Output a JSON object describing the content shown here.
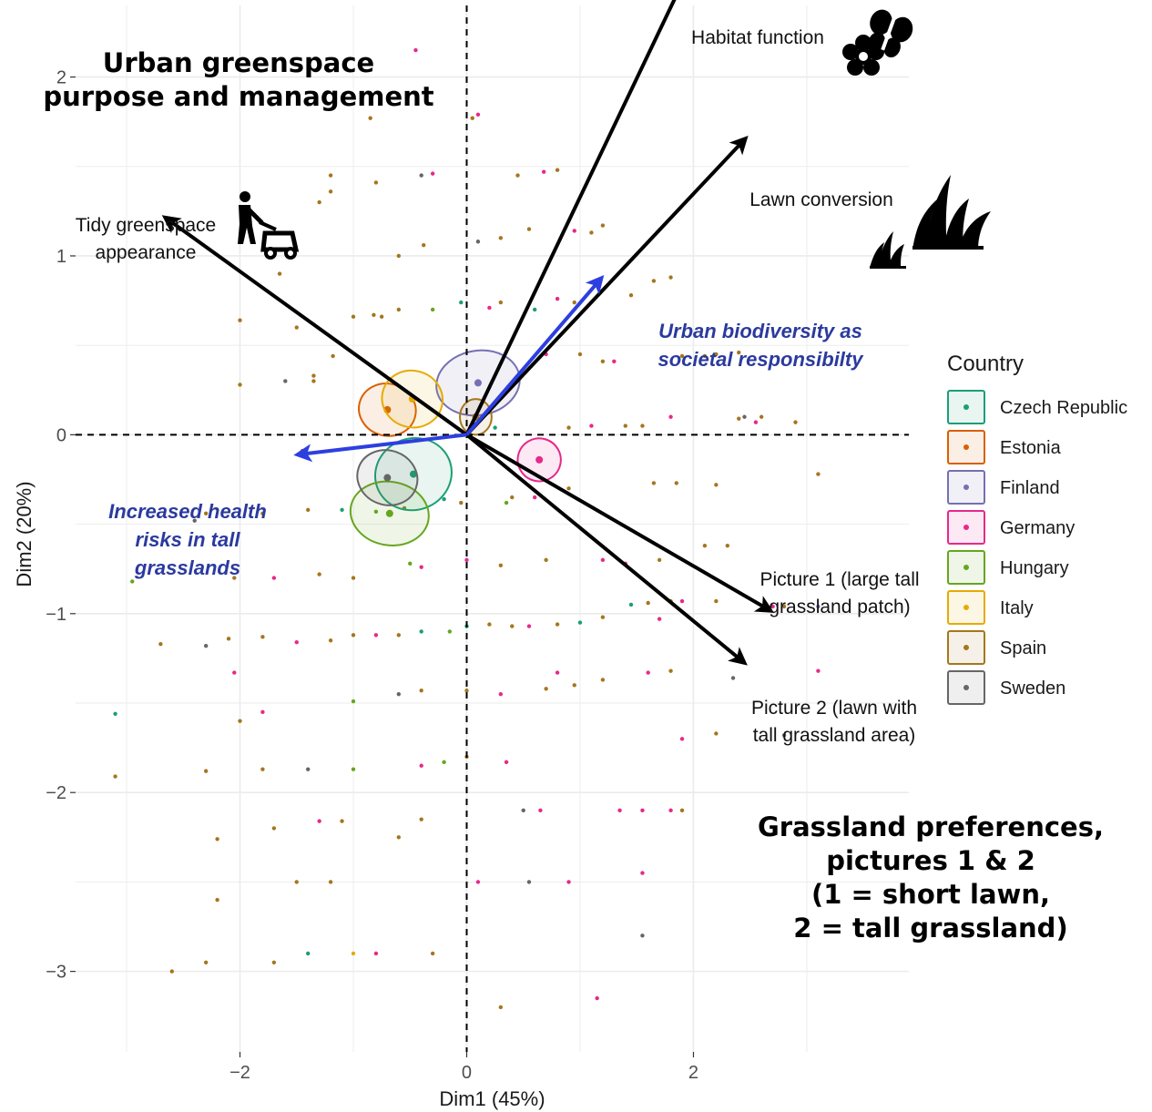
{
  "chart_data": {
    "type": "scatter",
    "subtype": "PCA biplot",
    "xlabel": "Dim1 (45%)",
    "ylabel": "Dim2 (20%)",
    "xlim": [
      -3.45,
      3.9
    ],
    "ylim": [
      -3.45,
      2.4
    ],
    "xticks": [
      -2,
      0,
      2
    ],
    "yticks": [
      -3,
      -2,
      -1,
      0,
      1,
      2
    ],
    "xtick_labels": [
      "−2",
      "0",
      "2"
    ],
    "ytick_labels": [
      "−3",
      "−2",
      "−1",
      "0",
      "1",
      "2"
    ],
    "grid": true,
    "reference_lines": {
      "x": 0,
      "y": 0,
      "style": "dashed"
    },
    "annotations": [
      {
        "id": "urban",
        "lines": [
          "Urban greenspace",
          "purpose and management"
        ]
      },
      {
        "id": "grass",
        "lines": [
          "Grassland preferences,",
          "pictures 1 & 2",
          "(1 = short lawn,",
          "2 = tall grassland)"
        ]
      }
    ],
    "variables": [
      {
        "name": "Habitat function",
        "lines": [
          "Habitat function"
        ],
        "x": 1.95,
        "y": 2.59,
        "color": "#000000",
        "icon": "flower-butterfly-icon"
      },
      {
        "name": "Lawn conversion",
        "lines": [
          "Lawn conversion"
        ],
        "x": 2.45,
        "y": 1.65,
        "color": "#000000",
        "icon": "tall-grass-icon"
      },
      {
        "name": "Tidy greenspace appearance",
        "lines": [
          "Tidy greenspace",
          "appearance"
        ],
        "x": -2.65,
        "y": 1.21,
        "color": "#000000",
        "icon": "lawn-mower-icon"
      },
      {
        "name": "Picture 1 (large tall grassland patch)",
        "lines": [
          "Picture 1 (large tall",
          "grassland patch)"
        ],
        "x": 2.67,
        "y": -0.98,
        "color": "#000000"
      },
      {
        "name": "Picture 2 (lawn with tall grassland area)",
        "lines": [
          "Picture 2 (lawn with",
          "tall grassland area)"
        ],
        "x": 2.44,
        "y": -1.27,
        "color": "#000000"
      }
    ],
    "supplementary": [
      {
        "name": "Urban biodiversity as societal responsibilty",
        "lines": [
          "Urban biodiversity as",
          "societal responsibilty"
        ],
        "x": 1.18,
        "y": 0.87,
        "color": "#2d3fe0"
      },
      {
        "name": "Increased health risks in tall grasslands",
        "lines": [
          "Increased health",
          "risks in tall",
          "grasslands"
        ],
        "x": -1.48,
        "y": -0.11,
        "color": "#2d3fe0"
      }
    ],
    "legend": {
      "title": "Country",
      "position": "right",
      "entries": [
        {
          "label": "Czech Republic",
          "color": "#1b9e77"
        },
        {
          "label": "Estonia",
          "color": "#d95f02"
        },
        {
          "label": "Finland",
          "color": "#7570b3"
        },
        {
          "label": "Germany",
          "color": "#e7298a"
        },
        {
          "label": "Hungary",
          "color": "#66a61e"
        },
        {
          "label": "Italy",
          "color": "#e6ab02"
        },
        {
          "label": "Spain",
          "color": "#a6761d"
        },
        {
          "label": "Sweden",
          "color": "#666666"
        }
      ]
    },
    "country_centroids": [
      {
        "country": "Czech Republic",
        "x": -0.47,
        "y": -0.22,
        "rx": 0.34,
        "ry": 0.2,
        "angle": -20
      },
      {
        "country": "Estonia",
        "x": -0.7,
        "y": 0.14,
        "rx": 0.23,
        "ry": 0.16,
        "angle": -75
      },
      {
        "country": "Finland",
        "x": 0.1,
        "y": 0.29,
        "rx": 0.37,
        "ry": 0.18,
        "angle": -10
      },
      {
        "country": "Germany",
        "x": 0.64,
        "y": -0.14,
        "rx": 0.19,
        "ry": 0.12,
        "angle": 15
      },
      {
        "country": "Hungary",
        "x": -0.68,
        "y": -0.44,
        "rx": 0.28,
        "ry": 0.22,
        "angle": -80
      },
      {
        "country": "Italy",
        "x": -0.48,
        "y": 0.2,
        "rx": 0.25,
        "ry": 0.17,
        "angle": -75
      },
      {
        "country": "Spain",
        "x": 0.08,
        "y": 0.1,
        "rx": 0.14,
        "ry": 0.1,
        "angle": 0
      },
      {
        "country": "Sweden",
        "x": -0.7,
        "y": -0.24,
        "rx": 0.24,
        "ry": 0.17,
        "angle": -70
      }
    ],
    "points": [
      [
        -1.2,
        1.36,
        "Spain"
      ],
      [
        -1.3,
        1.3,
        "Spain"
      ],
      [
        -1.65,
        0.9,
        "Spain"
      ],
      [
        -1.5,
        0.6,
        "Spain"
      ],
      [
        -1.18,
        0.44,
        "Spain"
      ],
      [
        -1.0,
        0.66,
        "Spain"
      ],
      [
        -0.82,
        0.67,
        "Spain"
      ],
      [
        -0.75,
        0.66,
        "Spain"
      ],
      [
        -0.6,
        0.7,
        "Spain"
      ],
      [
        -1.35,
        0.33,
        "Spain"
      ],
      [
        -2.0,
        0.64,
        "Spain"
      ],
      [
        -2.0,
        0.28,
        "Spain"
      ],
      [
        -1.6,
        0.3,
        "Sweden"
      ],
      [
        -1.35,
        0.3,
        "Spain"
      ],
      [
        -0.8,
        1.41,
        "Spain"
      ],
      [
        -0.85,
        1.77,
        "Spain"
      ],
      [
        -1.2,
        1.45,
        "Spain"
      ],
      [
        -0.4,
        1.45,
        "Sweden"
      ],
      [
        -0.3,
        1.46,
        "Germany"
      ],
      [
        -0.38,
        1.06,
        "Spain"
      ],
      [
        -0.6,
        1.0,
        "Spain"
      ],
      [
        -0.45,
        2.15,
        "Germany"
      ],
      [
        0.05,
        1.77,
        "Spain"
      ],
      [
        0.1,
        1.79,
        "Germany"
      ],
      [
        0.45,
        1.45,
        "Spain"
      ],
      [
        0.68,
        1.47,
        "Germany"
      ],
      [
        0.8,
        1.48,
        "Spain"
      ],
      [
        0.1,
        1.08,
        "Sweden"
      ],
      [
        0.3,
        1.1,
        "Spain"
      ],
      [
        0.55,
        1.15,
        "Spain"
      ],
      [
        0.95,
        1.14,
        "Germany"
      ],
      [
        1.1,
        1.13,
        "Spain"
      ],
      [
        1.2,
        1.17,
        "Spain"
      ],
      [
        0.8,
        0.76,
        "Germany"
      ],
      [
        0.95,
        0.74,
        "Spain"
      ],
      [
        1.45,
        0.78,
        "Spain"
      ],
      [
        1.65,
        0.86,
        "Spain"
      ],
      [
        1.8,
        0.88,
        "Spain"
      ],
      [
        0.2,
        0.71,
        "Germany"
      ],
      [
        0.3,
        0.74,
        "Spain"
      ],
      [
        0.7,
        0.45,
        "Germany"
      ],
      [
        1.0,
        0.45,
        "Spain"
      ],
      [
        1.2,
        0.41,
        "Spain"
      ],
      [
        1.3,
        0.41,
        "Germany"
      ],
      [
        1.9,
        0.44,
        "Spain"
      ],
      [
        2.1,
        0.44,
        "Spain"
      ],
      [
        2.2,
        0.45,
        "Spain"
      ],
      [
        2.4,
        0.46,
        "Spain"
      ],
      [
        0.9,
        0.04,
        "Spain"
      ],
      [
        1.1,
        0.05,
        "Germany"
      ],
      [
        1.4,
        0.05,
        "Spain"
      ],
      [
        1.55,
        0.05,
        "Spain"
      ],
      [
        2.4,
        0.09,
        "Spain"
      ],
      [
        2.55,
        0.07,
        "Germany"
      ],
      [
        2.6,
        0.1,
        "Spain"
      ],
      [
        2.9,
        0.07,
        "Spain"
      ],
      [
        3.1,
        -0.22,
        "Spain"
      ],
      [
        1.65,
        -0.27,
        "Spain"
      ],
      [
        1.85,
        -0.27,
        "Spain"
      ],
      [
        2.2,
        -0.28,
        "Spain"
      ],
      [
        0.9,
        -0.3,
        "Spain"
      ],
      [
        0.6,
        -0.35,
        "Germany"
      ],
      [
        0.4,
        -0.35,
        "Spain"
      ],
      [
        2.1,
        -0.62,
        "Spain"
      ],
      [
        2.3,
        -0.62,
        "Spain"
      ],
      [
        2.7,
        -0.96,
        "Germany"
      ],
      [
        2.8,
        -0.96,
        "Spain"
      ],
      [
        3.1,
        -0.96,
        "Finland"
      ],
      [
        1.6,
        -0.94,
        "Spain"
      ],
      [
        1.45,
        -0.95,
        "Czech Republic"
      ],
      [
        1.8,
        -0.93,
        "Spain"
      ],
      [
        1.2,
        -1.02,
        "Spain"
      ],
      [
        1.0,
        -1.05,
        "Czech Republic"
      ],
      [
        0.8,
        -1.06,
        "Spain"
      ],
      [
        0.55,
        -1.07,
        "Germany"
      ],
      [
        0.4,
        -1.07,
        "Spain"
      ],
      [
        0.2,
        -1.06,
        "Spain"
      ],
      [
        0.0,
        -1.07,
        "Czech Republic"
      ],
      [
        -0.15,
        -1.1,
        "Hungary"
      ],
      [
        -0.4,
        -1.1,
        "Czech Republic"
      ],
      [
        -0.6,
        -1.12,
        "Spain"
      ],
      [
        -0.8,
        -1.12,
        "Germany"
      ],
      [
        -1.0,
        -1.12,
        "Spain"
      ],
      [
        -1.2,
        -1.15,
        "Spain"
      ],
      [
        -1.5,
        -1.16,
        "Germany"
      ],
      [
        -1.8,
        -1.13,
        "Spain"
      ],
      [
        -2.1,
        -1.14,
        "Spain"
      ],
      [
        -2.3,
        -1.18,
        "Sweden"
      ],
      [
        -2.7,
        -1.17,
        "Spain"
      ],
      [
        -3.1,
        -1.56,
        "Czech Republic"
      ],
      [
        -2.0,
        -1.6,
        "Spain"
      ],
      [
        -1.8,
        -1.55,
        "Germany"
      ],
      [
        -1.0,
        -1.49,
        "Hungary"
      ],
      [
        -0.6,
        -1.45,
        "Sweden"
      ],
      [
        -0.4,
        -1.43,
        "Spain"
      ],
      [
        0.0,
        -1.43,
        "Spain"
      ],
      [
        0.3,
        -1.45,
        "Germany"
      ],
      [
        0.7,
        -1.42,
        "Spain"
      ],
      [
        0.95,
        -1.4,
        "Spain"
      ],
      [
        1.2,
        -1.37,
        "Spain"
      ],
      [
        1.6,
        -1.33,
        "Germany"
      ],
      [
        1.8,
        -1.32,
        "Spain"
      ],
      [
        2.35,
        -1.36,
        "Sweden"
      ],
      [
        3.1,
        -1.32,
        "Germany"
      ],
      [
        2.8,
        -1.68,
        "Sweden"
      ],
      [
        2.2,
        -1.67,
        "Spain"
      ],
      [
        1.9,
        -1.7,
        "Germany"
      ],
      [
        0.0,
        -1.8,
        "Spain"
      ],
      [
        0.35,
        -1.83,
        "Germany"
      ],
      [
        -0.2,
        -1.83,
        "Hungary"
      ],
      [
        -0.4,
        -1.85,
        "Germany"
      ],
      [
        -1.0,
        -1.87,
        "Hungary"
      ],
      [
        -1.4,
        -1.87,
        "Sweden"
      ],
      [
        -1.8,
        -1.87,
        "Spain"
      ],
      [
        -2.3,
        -1.88,
        "Spain"
      ],
      [
        -3.1,
        -1.91,
        "Spain"
      ],
      [
        -2.2,
        -2.26,
        "Spain"
      ],
      [
        -2.2,
        -2.6,
        "Spain"
      ],
      [
        -1.7,
        -2.2,
        "Spain"
      ],
      [
        -1.3,
        -2.16,
        "Germany"
      ],
      [
        -1.1,
        -2.16,
        "Spain"
      ],
      [
        -0.4,
        -2.15,
        "Spain"
      ],
      [
        0.5,
        -2.1,
        "Sweden"
      ],
      [
        0.65,
        -2.1,
        "Germany"
      ],
      [
        1.35,
        -2.1,
        "Germany"
      ],
      [
        1.55,
        -2.1,
        "Germany"
      ],
      [
        1.8,
        -2.1,
        "Germany"
      ],
      [
        1.9,
        -2.1,
        "Spain"
      ],
      [
        1.55,
        -2.45,
        "Germany"
      ],
      [
        0.9,
        -2.5,
        "Germany"
      ],
      [
        0.55,
        -2.5,
        "Sweden"
      ],
      [
        0.1,
        -2.5,
        "Germany"
      ],
      [
        -1.5,
        -2.5,
        "Spain"
      ],
      [
        -1.2,
        -2.5,
        "Spain"
      ],
      [
        -1.4,
        -2.9,
        "Czech Republic"
      ],
      [
        -1.0,
        -2.9,
        "Italy"
      ],
      [
        -0.8,
        -2.9,
        "Germany"
      ],
      [
        -0.3,
        -2.9,
        "Spain"
      ],
      [
        -1.7,
        -2.95,
        "Spain"
      ],
      [
        -2.3,
        -2.95,
        "Spain"
      ],
      [
        -2.6,
        -3.0,
        "Spain"
      ],
      [
        0.3,
        -3.2,
        "Spain"
      ],
      [
        1.15,
        -3.15,
        "Germany"
      ],
      [
        1.55,
        -2.8,
        "Sweden"
      ],
      [
        -1.45,
        -0.09,
        "Spain"
      ],
      [
        -1.8,
        -0.44,
        "Spain"
      ],
      [
        -2.3,
        -0.44,
        "Spain"
      ],
      [
        -2.4,
        -0.48,
        "Sweden"
      ],
      [
        -2.05,
        -0.8,
        "Spain"
      ],
      [
        -2.95,
        -0.82,
        "Hungary"
      ],
      [
        -1.0,
        -0.8,
        "Spain"
      ],
      [
        -1.3,
        -0.78,
        "Spain"
      ],
      [
        -0.5,
        -0.72,
        "Hungary"
      ],
      [
        -0.4,
        -0.74,
        "Germany"
      ],
      [
        0.0,
        -0.7,
        "Germany"
      ],
      [
        0.3,
        -0.73,
        "Spain"
      ],
      [
        0.7,
        -0.7,
        "Spain"
      ],
      [
        1.2,
        -0.7,
        "Germany"
      ],
      [
        1.4,
        -0.72,
        "Germany"
      ],
      [
        1.7,
        -0.7,
        "Spain"
      ],
      [
        -1.4,
        -0.42,
        "Spain"
      ],
      [
        -1.1,
        -0.42,
        "Czech Republic"
      ],
      [
        -0.8,
        -0.43,
        "Hungary"
      ],
      [
        -0.55,
        -0.41,
        "Spain"
      ],
      [
        -0.2,
        -0.36,
        "Czech Republic"
      ],
      [
        -0.05,
        -0.38,
        "Spain"
      ],
      [
        1.8,
        0.1,
        "Germany"
      ],
      [
        2.45,
        0.1,
        "Sweden"
      ],
      [
        0.25,
        0.04,
        "Czech Republic"
      ],
      [
        -0.05,
        0.74,
        "Czech Republic"
      ],
      [
        -0.3,
        0.7,
        "Hungary"
      ],
      [
        0.6,
        0.7,
        "Czech Republic"
      ],
      [
        1.9,
        -0.93,
        "Germany"
      ],
      [
        2.2,
        -0.93,
        "Spain"
      ],
      [
        0.35,
        -0.38,
        "Hungary"
      ],
      [
        1.7,
        -1.03,
        "Germany"
      ],
      [
        -0.6,
        -2.25,
        "Spain"
      ],
      [
        -1.7,
        -0.8,
        "Germany"
      ],
      [
        -2.05,
        -1.33,
        "Germany"
      ],
      [
        0.8,
        -1.33,
        "Germany"
      ]
    ]
  }
}
